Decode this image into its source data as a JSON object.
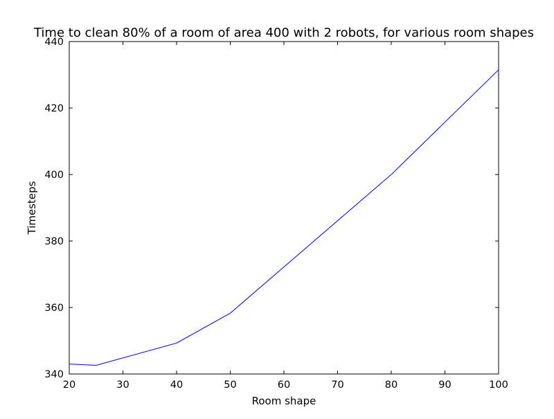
{
  "chart_data": {
    "type": "line",
    "title": "Time to clean 80% of a room of area 400 with 2 robots, for various room shapes",
    "xlabel": "Room shape",
    "ylabel": "Timesteps",
    "xlim": [
      20,
      100
    ],
    "ylim": [
      340,
      440
    ],
    "xticks": [
      "20",
      "30",
      "40",
      "50",
      "60",
      "70",
      "80",
      "90",
      "100"
    ],
    "yticks": [
      "340",
      "360",
      "380",
      "400",
      "420",
      "440"
    ],
    "grid": false,
    "legend": "none",
    "series": [
      {
        "color": "#0000ff",
        "x": [
          20,
          25,
          40,
          50,
          80,
          100
        ],
        "y": [
          343.0,
          342.6,
          349.3,
          358.3,
          400.0,
          431.5
        ]
      }
    ]
  }
}
